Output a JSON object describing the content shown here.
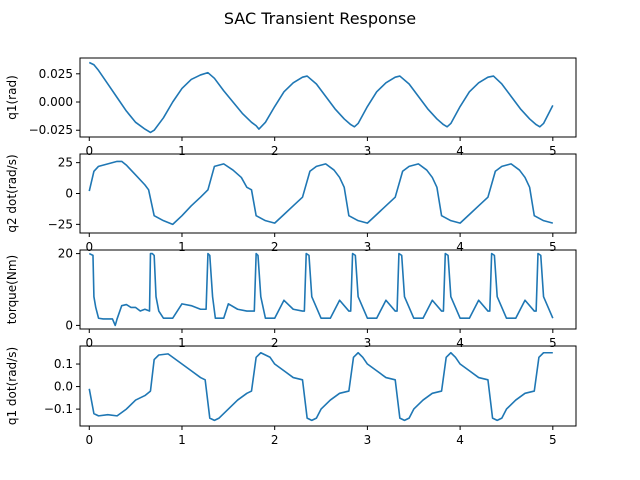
{
  "figure": {
    "title": "SAC Transient Response",
    "line_color": "#1f77b4"
  },
  "chart_data": [
    {
      "type": "line",
      "title": "",
      "xlabel": "",
      "ylabel": "q1(rad)",
      "xlim": [
        -0.1,
        5.25
      ],
      "ylim": [
        -0.031,
        0.039
      ],
      "xticks": [
        0,
        1,
        2,
        3,
        4,
        5
      ],
      "yticks": [
        0.025,
        0.0,
        -0.025
      ],
      "ytick_labels": [
        "0.025",
        "0.000",
        "−0.025"
      ],
      "series": [
        {
          "x": [
            0,
            0.05,
            0.1,
            0.2,
            0.3,
            0.4,
            0.5,
            0.6,
            0.66,
            0.7,
            0.8,
            0.9,
            1.0,
            1.1,
            1.2,
            1.28,
            1.35,
            1.45,
            1.55,
            1.65,
            1.75,
            1.8,
            1.83,
            1.9,
            2.0,
            2.1,
            2.2,
            2.3,
            2.35,
            2.45,
            2.55,
            2.65,
            2.75,
            2.82,
            2.86,
            2.9,
            3.0,
            3.1,
            3.2,
            3.3,
            3.35,
            3.45,
            3.55,
            3.65,
            3.75,
            3.82,
            3.86,
            3.9,
            4.0,
            4.1,
            4.2,
            4.3,
            4.36,
            4.45,
            4.55,
            4.65,
            4.75,
            4.82,
            4.86,
            4.9,
            5.0
          ],
          "y": [
            0.035,
            0.033,
            0.028,
            0.016,
            0.004,
            -0.008,
            -0.018,
            -0.024,
            -0.027,
            -0.025,
            -0.014,
            0.0,
            0.012,
            0.02,
            0.024,
            0.026,
            0.021,
            0.01,
            0.0,
            -0.01,
            -0.018,
            -0.021,
            -0.024,
            -0.018,
            -0.004,
            0.009,
            0.017,
            0.022,
            0.023,
            0.016,
            0.005,
            -0.006,
            -0.015,
            -0.02,
            -0.022,
            -0.019,
            -0.004,
            0.009,
            0.017,
            0.022,
            0.023,
            0.016,
            0.005,
            -0.006,
            -0.015,
            -0.02,
            -0.022,
            -0.019,
            -0.004,
            0.009,
            0.017,
            0.022,
            0.023,
            0.016,
            0.005,
            -0.006,
            -0.015,
            -0.02,
            -0.022,
            -0.019,
            -0.003
          ]
        }
      ]
    },
    {
      "type": "line",
      "title": "",
      "xlabel": "",
      "ylabel": "q2 dot(rad/s)",
      "xlim": [
        -0.1,
        5.25
      ],
      "ylim": [
        -32,
        32
      ],
      "xticks": [
        0,
        1,
        2,
        3,
        4,
        5
      ],
      "yticks": [
        25,
        0,
        -25
      ],
      "ytick_labels": [
        "25",
        "0",
        "−25"
      ],
      "series": [
        {
          "x": [
            0,
            0.05,
            0.1,
            0.2,
            0.3,
            0.35,
            0.4,
            0.5,
            0.6,
            0.64,
            0.7,
            0.8,
            0.9,
            1.0,
            1.1,
            1.2,
            1.28,
            1.35,
            1.45,
            1.55,
            1.64,
            1.7,
            1.75,
            1.8,
            1.9,
            2.0,
            2.1,
            2.2,
            2.3,
            2.38,
            2.45,
            2.55,
            2.64,
            2.7,
            2.75,
            2.8,
            2.9,
            3.0,
            3.1,
            3.2,
            3.3,
            3.38,
            3.45,
            3.55,
            3.64,
            3.7,
            3.75,
            3.8,
            3.9,
            4.0,
            4.1,
            4.2,
            4.3,
            4.38,
            4.45,
            4.55,
            4.64,
            4.7,
            4.75,
            4.8,
            4.9,
            5.0
          ],
          "y": [
            2,
            18,
            22,
            24,
            26,
            26,
            23,
            15,
            7,
            3,
            -18,
            -22,
            -25,
            -18,
            -10,
            -3,
            3,
            22,
            24,
            19,
            13,
            5,
            3,
            -18,
            -22,
            -24,
            -17,
            -10,
            -3,
            18,
            22,
            24,
            19,
            13,
            5,
            -18,
            -22,
            -24,
            -17,
            -10,
            -3,
            18,
            22,
            24,
            19,
            13,
            5,
            -18,
            -22,
            -24,
            -17,
            -10,
            -3,
            18,
            22,
            24,
            19,
            13,
            5,
            -18,
            -22,
            -24
          ]
        }
      ]
    },
    {
      "type": "line",
      "title": "",
      "xlabel": "",
      "ylabel": "torque(Nm)",
      "xlim": [
        -0.1,
        5.25
      ],
      "ylim": [
        -1,
        21
      ],
      "xticks": [
        0,
        1,
        2,
        3,
        4,
        5
      ],
      "yticks": [
        20,
        0
      ],
      "ytick_labels": [
        "20",
        "0"
      ],
      "series": [
        {
          "x": [
            0,
            0.04,
            0.05,
            0.07,
            0.1,
            0.15,
            0.25,
            0.28,
            0.3,
            0.35,
            0.4,
            0.45,
            0.5,
            0.55,
            0.6,
            0.65,
            0.66,
            0.68,
            0.7,
            0.72,
            0.75,
            0.8,
            0.9,
            1.0,
            1.1,
            1.2,
            1.26,
            1.28,
            1.3,
            1.33,
            1.36,
            1.45,
            1.5,
            1.6,
            1.7,
            1.78,
            1.8,
            1.82,
            1.85,
            1.9,
            2.0,
            2.1,
            2.2,
            2.3,
            2.32,
            2.34,
            2.37,
            2.4,
            2.5,
            2.6,
            2.7,
            2.8,
            2.82,
            2.84,
            2.87,
            2.9,
            3.0,
            3.1,
            3.2,
            3.3,
            3.32,
            3.34,
            3.37,
            3.4,
            3.5,
            3.6,
            3.7,
            3.8,
            3.82,
            3.84,
            3.87,
            3.9,
            4.0,
            4.1,
            4.2,
            4.3,
            4.32,
            4.34,
            4.37,
            4.4,
            4.5,
            4.6,
            4.7,
            4.8,
            4.82,
            4.84,
            4.87,
            4.9,
            5.0
          ],
          "y": [
            20,
            19.5,
            8,
            5,
            2,
            1.8,
            1.8,
            0,
            1.8,
            5.5,
            5.8,
            5,
            5,
            4,
            4.5,
            4,
            20,
            20,
            19.5,
            8,
            4,
            2,
            2,
            6,
            5.5,
            4.5,
            4.5,
            20,
            19.5,
            8,
            2,
            2,
            6,
            4.5,
            4,
            4,
            20,
            19.5,
            8,
            2,
            2,
            7,
            4.5,
            4,
            4,
            20,
            19.5,
            8,
            2,
            2,
            7,
            4,
            4,
            20,
            19.5,
            8,
            2,
            2,
            7,
            4,
            4,
            20,
            19.5,
            8,
            2,
            2,
            7,
            4,
            4,
            20,
            19.5,
            8,
            2,
            2,
            7,
            4,
            4,
            20,
            19.5,
            8,
            2,
            2,
            7,
            4,
            4,
            20,
            19.5,
            8,
            2
          ]
        }
      ]
    },
    {
      "type": "line",
      "title": "",
      "xlabel": "",
      "ylabel": "q1 dot(rad/s)",
      "xlim": [
        -0.1,
        5.25
      ],
      "ylim": [
        -0.175,
        0.18
      ],
      "xticks": [
        0,
        1,
        2,
        3,
        4,
        5
      ],
      "xtick_labels": [
        "0",
        "1",
        "2",
        "3",
        "4",
        "5"
      ],
      "yticks": [
        0.1,
        0.0,
        -0.1
      ],
      "ytick_labels": [
        "0.1",
        "0.0",
        "−0.1"
      ],
      "series": [
        {
          "x": [
            0,
            0.05,
            0.1,
            0.2,
            0.3,
            0.4,
            0.5,
            0.6,
            0.66,
            0.7,
            0.75,
            0.85,
            0.9,
            1.0,
            1.1,
            1.2,
            1.25,
            1.3,
            1.35,
            1.4,
            1.5,
            1.6,
            1.7,
            1.75,
            1.8,
            1.85,
            1.95,
            2.0,
            2.1,
            2.2,
            2.3,
            2.35,
            2.4,
            2.45,
            2.5,
            2.6,
            2.7,
            2.8,
            2.85,
            2.9,
            2.95,
            3.0,
            3.1,
            3.2,
            3.3,
            3.35,
            3.4,
            3.45,
            3.5,
            3.6,
            3.7,
            3.8,
            3.85,
            3.9,
            3.95,
            4.0,
            4.1,
            4.2,
            4.3,
            4.35,
            4.4,
            4.45,
            4.5,
            4.6,
            4.7,
            4.8,
            4.85,
            4.9,
            4.95,
            5.0
          ],
          "y": [
            -0.01,
            -0.12,
            -0.13,
            -0.125,
            -0.13,
            -0.1,
            -0.06,
            -0.04,
            -0.02,
            0.12,
            0.14,
            0.145,
            0.13,
            0.1,
            0.07,
            0.04,
            0.03,
            -0.14,
            -0.15,
            -0.14,
            -0.1,
            -0.06,
            -0.03,
            -0.02,
            0.13,
            0.15,
            0.13,
            0.1,
            0.07,
            0.04,
            0.03,
            -0.14,
            -0.15,
            -0.14,
            -0.1,
            -0.06,
            -0.03,
            -0.02,
            0.13,
            0.15,
            0.13,
            0.1,
            0.07,
            0.04,
            0.03,
            -0.14,
            -0.15,
            -0.14,
            -0.1,
            -0.06,
            -0.03,
            -0.02,
            0.13,
            0.15,
            0.13,
            0.1,
            0.07,
            0.04,
            0.03,
            -0.14,
            -0.15,
            -0.14,
            -0.1,
            -0.06,
            -0.03,
            -0.02,
            0.13,
            0.15,
            0.15,
            0.15
          ]
        }
      ]
    }
  ]
}
